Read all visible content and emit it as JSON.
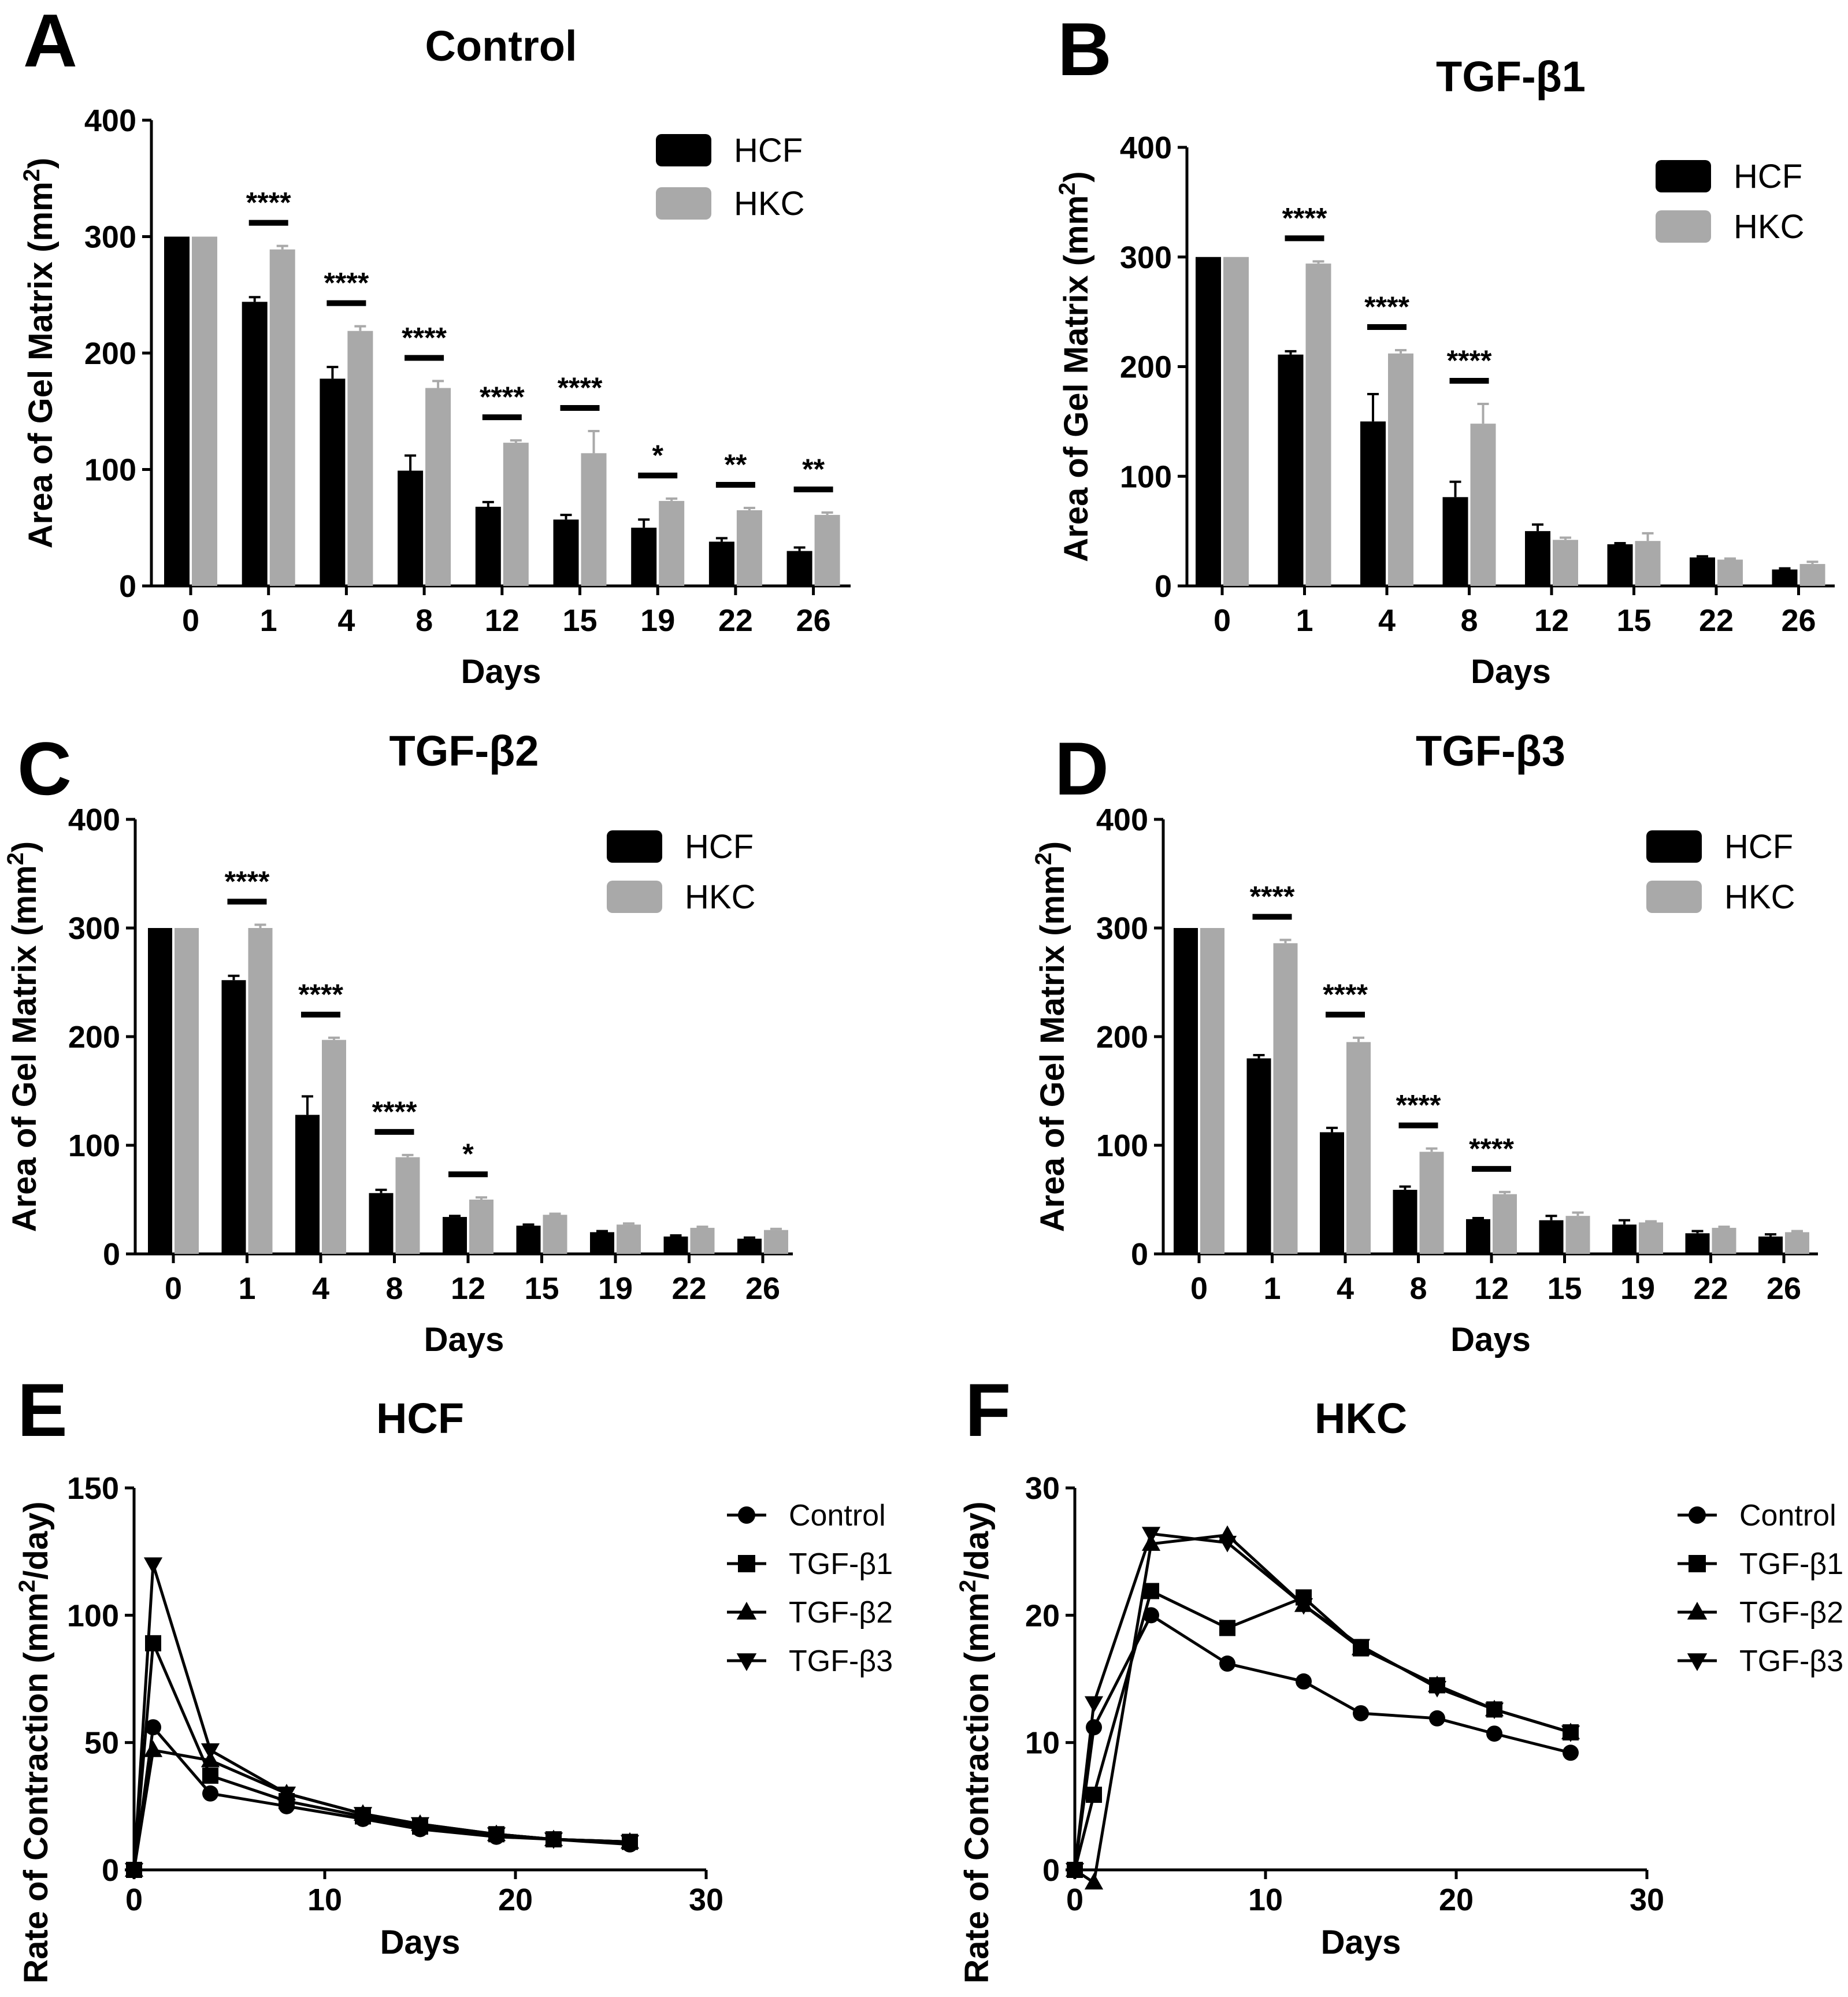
{
  "colors": {
    "hcf": "#000000",
    "hkc": "#a9a9a9",
    "axis": "#000000"
  },
  "chart_data": [
    {
      "id": "A",
      "type": "bar",
      "title": "Control",
      "xlabel": "Days",
      "ylabel": "Area of  Gel Matrix (mm",
      "ylabel_sup": "2",
      "ylabel_close": ")",
      "ylim": [
        0,
        400
      ],
      "yticks": [
        0,
        100,
        200,
        300,
        400
      ],
      "categories": [
        "0",
        "1",
        "4",
        "8",
        "12",
        "15",
        "19",
        "22",
        "26"
      ],
      "series": [
        {
          "name": "HCF",
          "values": [
            300,
            244,
            178,
            99,
            68,
            57,
            50,
            38,
            30
          ],
          "errors": [
            0,
            4,
            10,
            13,
            4,
            4,
            7,
            3,
            3
          ]
        },
        {
          "name": "HKC",
          "values": [
            300,
            289,
            219,
            170,
            123,
            114,
            73,
            65,
            61
          ],
          "errors": [
            0,
            3,
            4,
            6,
            2,
            19,
            2,
            2,
            2
          ]
        }
      ],
      "significance": [
        "",
        "****",
        "****",
        "****",
        "****",
        "****",
        "*",
        "**",
        "**"
      ]
    },
    {
      "id": "B",
      "type": "bar",
      "title": "TGF-β1",
      "xlabel": "Days",
      "ylabel": "Area of  Gel Matrix (mm",
      "ylabel_sup": "2",
      "ylabel_close": ")",
      "ylim": [
        0,
        400
      ],
      "yticks": [
        0,
        100,
        200,
        300,
        400
      ],
      "categories": [
        "0",
        "1",
        "4",
        "8",
        "12",
        "15",
        "22",
        "26"
      ],
      "series": [
        {
          "name": "HCF",
          "values": [
            300,
            211,
            150,
            81,
            50,
            38,
            26,
            15
          ],
          "errors": [
            0,
            3,
            25,
            14,
            6,
            1,
            1,
            1
          ]
        },
        {
          "name": "HKC",
          "values": [
            300,
            294,
            212,
            148,
            42,
            41,
            24,
            20
          ],
          "errors": [
            0,
            2,
            3,
            18,
            2,
            7,
            1,
            2
          ]
        }
      ],
      "significance": [
        "",
        "****",
        "****",
        "****",
        "",
        "",
        "",
        ""
      ]
    },
    {
      "id": "C",
      "type": "bar",
      "title": "TGF-β2",
      "xlabel": "Days",
      "ylabel": "Area of  Gel Matrix (mm",
      "ylabel_sup": "2",
      "ylabel_close": ")",
      "ylim": [
        0,
        400
      ],
      "yticks": [
        0,
        100,
        200,
        300,
        400
      ],
      "categories": [
        "0",
        "1",
        "4",
        "8",
        "12",
        "15",
        "19",
        "22",
        "26"
      ],
      "series": [
        {
          "name": "HCF",
          "values": [
            300,
            252,
            128,
            56,
            34,
            26,
            20,
            16,
            14
          ],
          "errors": [
            0,
            4,
            17,
            3,
            1,
            1,
            1,
            1,
            1
          ]
        },
        {
          "name": "HKC",
          "values": [
            300,
            300,
            197,
            89,
            50,
            36,
            27,
            24,
            22
          ],
          "errors": [
            0,
            3,
            2,
            2,
            2,
            1,
            1,
            1,
            1
          ]
        }
      ],
      "significance": [
        "",
        "****",
        "****",
        "****",
        "*",
        "",
        "",
        "",
        ""
      ]
    },
    {
      "id": "D",
      "type": "bar",
      "title": "TGF-β3",
      "xlabel": "Days",
      "ylabel": "Area of  Gel Matrix (mm",
      "ylabel_sup": "2",
      "ylabel_close": ")",
      "ylim": [
        0,
        400
      ],
      "yticks": [
        0,
        100,
        200,
        300,
        400
      ],
      "categories": [
        "0",
        "1",
        "4",
        "8",
        "12",
        "15",
        "19",
        "22",
        "26"
      ],
      "series": [
        {
          "name": "HCF",
          "values": [
            300,
            180,
            112,
            59,
            32,
            31,
            27,
            19,
            16
          ],
          "errors": [
            0,
            3,
            4,
            3,
            1,
            4,
            4,
            2,
            2
          ]
        },
        {
          "name": "HKC",
          "values": [
            300,
            286,
            195,
            94,
            55,
            35,
            29,
            24,
            20
          ],
          "errors": [
            0,
            3,
            4,
            3,
            2,
            3,
            1,
            1,
            1
          ]
        }
      ],
      "significance": [
        "",
        "****",
        "****",
        "****",
        "****",
        "",
        "",
        "",
        ""
      ]
    },
    {
      "id": "E",
      "type": "line",
      "title": "HCF",
      "xlabel": "Days",
      "ylabel": "Rate of  Contraction  (mm",
      "ylabel_sup": "2",
      "ylabel_close": "/day)",
      "xlim": [
        0,
        30
      ],
      "xticks": [
        0,
        10,
        20,
        30
      ],
      "ylim": [
        0,
        150
      ],
      "yticks": [
        0,
        50,
        100,
        150
      ],
      "series": [
        {
          "name": "Control",
          "marker": "circle",
          "x": [
            0,
            1,
            4,
            8,
            12,
            15,
            19,
            22,
            26
          ],
          "y": [
            0,
            56,
            30,
            25,
            20,
            16,
            13,
            12,
            10
          ]
        },
        {
          "name": "TGF-β1",
          "marker": "square",
          "x": [
            0,
            1,
            4,
            8,
            12,
            15,
            19,
            22,
            26
          ],
          "y": [
            0,
            89,
            37,
            27,
            21,
            17,
            14,
            12,
            11
          ]
        },
        {
          "name": "TGF-β2",
          "marker": "triangle-up",
          "x": [
            0,
            1,
            4,
            8,
            12,
            15,
            19,
            22,
            26
          ],
          "y": [
            0,
            47,
            43,
            30,
            22,
            18,
            14,
            12,
            11
          ]
        },
        {
          "name": "TGF-β3",
          "marker": "triangle-down",
          "x": [
            0,
            1,
            4,
            8,
            12,
            15,
            19,
            22,
            26
          ],
          "y": [
            0,
            120,
            47,
            30,
            22,
            18,
            14,
            12,
            11
          ]
        }
      ]
    },
    {
      "id": "F",
      "type": "line",
      "title": "HKC",
      "xlabel": "Days",
      "ylabel": "Rate of  Contraction  (mm",
      "ylabel_sup": "2",
      "ylabel_close": "/day)",
      "xlim": [
        0,
        30
      ],
      "xticks": [
        0,
        10,
        20,
        30
      ],
      "ylim": [
        0,
        30
      ],
      "yticks": [
        0,
        10,
        20,
        30
      ],
      "series": [
        {
          "name": "Control",
          "marker": "circle",
          "x": [
            0,
            1,
            4,
            8,
            12,
            15,
            19,
            22,
            26
          ],
          "y": [
            0,
            11.2,
            20,
            16.2,
            14.8,
            12.3,
            11.9,
            10.7,
            9.2
          ]
        },
        {
          "name": "TGF-β1",
          "marker": "square",
          "x": [
            0,
            1,
            4,
            8,
            12,
            15,
            19,
            22,
            26
          ],
          "y": [
            0,
            5.9,
            21.9,
            19,
            21.4,
            17.4,
            14.5,
            12.6,
            10.8
          ]
        },
        {
          "name": "TGF-β2",
          "marker": "triangle-up",
          "x": [
            0,
            1,
            4,
            8,
            12,
            15,
            19,
            22,
            26
          ],
          "y": [
            0,
            -1,
            25.6,
            26.3,
            20.8,
            17.4,
            14.5,
            12.6,
            10.8
          ]
        },
        {
          "name": "TGF-β3",
          "marker": "triangle-down",
          "x": [
            0,
            1,
            4,
            8,
            12,
            15,
            19,
            22,
            26
          ],
          "y": [
            0,
            13.1,
            26.4,
            25.7,
            20.8,
            17.6,
            14.3,
            12.6,
            10.8
          ]
        }
      ]
    }
  ]
}
